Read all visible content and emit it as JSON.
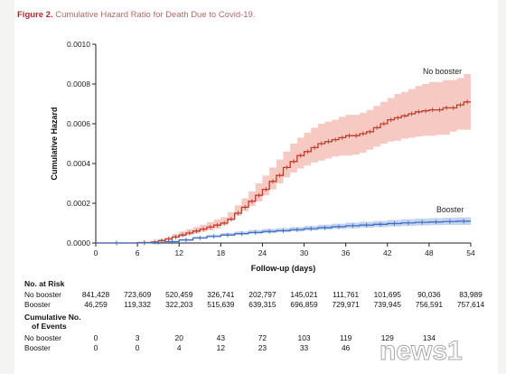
{
  "figure": {
    "label": "Figure 2.",
    "title": "Cumulative Hazard Ratio for Death Due to Covid-19."
  },
  "chart_data": {
    "type": "line",
    "xlabel": "Follow-up (days)",
    "ylabel": "Cumulative Hazard",
    "xlim": [
      0,
      54
    ],
    "ylim": [
      0,
      0.001
    ],
    "x_ticks": [
      0,
      6,
      12,
      18,
      24,
      30,
      36,
      42,
      48,
      54
    ],
    "y_ticks": [
      0.0,
      0.0002,
      0.0004,
      0.0006,
      0.0008,
      0.001
    ],
    "y_tick_labels": [
      "0.0000",
      "0.0002",
      "0.0004",
      "0.0006",
      "0.0008",
      "0.0010"
    ],
    "series": [
      {
        "name": "No booster",
        "color": "#c0392b",
        "band_color": "#f2b3a8",
        "x": [
          0,
          6,
          8,
          9,
          10,
          11,
          12,
          13,
          14,
          15,
          16,
          17,
          18,
          19,
          20,
          21,
          22,
          23,
          24,
          25,
          26,
          27,
          28,
          29,
          30,
          31,
          32,
          33,
          34,
          35,
          36,
          37,
          38,
          39,
          40,
          41,
          42,
          43,
          44,
          45,
          46,
          47,
          48,
          49,
          50,
          51,
          52,
          53,
          54
        ],
        "y": [
          0,
          2e-06,
          5e-06,
          1.2e-05,
          2e-05,
          3e-05,
          4e-05,
          5e-05,
          6e-05,
          7e-05,
          8e-05,
          9e-05,
          0.0001,
          0.00012,
          0.00015,
          0.00018,
          0.00021,
          0.00024,
          0.00027,
          0.00031,
          0.00034,
          0.00038,
          0.00041,
          0.00044,
          0.00046,
          0.00048,
          0.0005,
          0.00051,
          0.00052,
          0.00053,
          0.00054,
          0.00054,
          0.00055,
          0.00056,
          0.00058,
          0.0006,
          0.00062,
          0.00063,
          0.00064,
          0.00065,
          0.00066,
          0.000665,
          0.00067,
          0.00067,
          0.00068,
          0.00068,
          0.000695,
          0.00071,
          0.00071
        ],
        "lower": [
          0,
          0,
          2e-06,
          6e-06,
          1e-05,
          1.8e-05,
          2.5e-05,
          3.3e-05,
          4e-05,
          4.8e-05,
          5.6e-05,
          6.4e-05,
          7.2e-05,
          9e-05,
          0.000112,
          0.000138,
          0.00016,
          0.000185,
          0.00021,
          0.00024,
          0.00027,
          0.0003,
          0.00033,
          0.000355,
          0.000375,
          0.00039,
          0.000405,
          0.000415,
          0.000425,
          0.000435,
          0.00044,
          0.00044,
          0.000445,
          0.000455,
          0.00047,
          0.000485,
          0.0005,
          0.00051,
          0.000515,
          0.000525,
          0.00053,
          0.000535,
          0.00054,
          0.00054,
          0.000545,
          0.000545,
          0.00056,
          0.00057,
          0.00057
        ],
        "upper": [
          0,
          5e-06,
          1e-05,
          2e-05,
          3e-05,
          4.5e-05,
          5.8e-05,
          7e-05,
          8e-05,
          9.2e-05,
          0.000105,
          0.000118,
          0.00013,
          0.000155,
          0.00019,
          0.000225,
          0.00026,
          0.0003,
          0.00034,
          0.00038,
          0.00042,
          0.00046,
          0.0005,
          0.00053,
          0.000555,
          0.00058,
          0.0006,
          0.00061,
          0.00062,
          0.000635,
          0.000645,
          0.000645,
          0.000655,
          0.00067,
          0.00069,
          0.00071,
          0.00073,
          0.00075,
          0.00076,
          0.000775,
          0.00079,
          0.0008,
          0.00081,
          0.00081,
          0.00082,
          0.00082,
          0.00083,
          0.00085,
          0.00085
        ]
      },
      {
        "name": "Booster",
        "color": "#3f6fc2",
        "band_color": "#a9c1ea",
        "x": [
          0,
          6,
          8,
          10,
          12,
          14,
          16,
          18,
          20,
          22,
          24,
          26,
          28,
          30,
          32,
          34,
          36,
          38,
          40,
          42,
          44,
          46,
          48,
          50,
          52,
          54
        ],
        "y": [
          0,
          1e-06,
          3e-06,
          7e-06,
          1.5e-05,
          2.5e-05,
          3.3e-05,
          4e-05,
          4.7e-05,
          5.3e-05,
          5.8e-05,
          6.2e-05,
          6.7e-05,
          7.2e-05,
          7.7e-05,
          8.2e-05,
          8.7e-05,
          9e-05,
          9.4e-05,
          9.8e-05,
          0.000101,
          0.000104,
          0.000106,
          0.000108,
          0.00011,
          0.00011
        ],
        "lower": [
          0,
          0,
          1e-06,
          4e-06,
          1e-05,
          1.8e-05,
          2.5e-05,
          3e-05,
          3.6e-05,
          4.1e-05,
          4.6e-05,
          5e-05,
          5.4e-05,
          5.8e-05,
          6.3e-05,
          6.7e-05,
          7.1e-05,
          7.4e-05,
          7.7e-05,
          8e-05,
          8.3e-05,
          8.6e-05,
          8.8e-05,
          9e-05,
          9.1e-05,
          9.1e-05
        ],
        "upper": [
          0,
          3e-06,
          6e-06,
          1e-05,
          2.1e-05,
          3.3e-05,
          4.2e-05,
          5e-05,
          5.8e-05,
          6.6e-05,
          7.1e-05,
          7.5e-05,
          8e-05,
          8.6e-05,
          9.2e-05,
          9.7e-05,
          0.000103,
          0.000107,
          0.000111,
          0.000116,
          0.00012,
          0.000123,
          0.000125,
          0.000127,
          0.000129,
          0.000129
        ]
      }
    ],
    "annotations": [
      {
        "text": "No booster",
        "series": "No booster"
      },
      {
        "text": "Booster",
        "series": "Booster"
      }
    ],
    "grid": false
  },
  "risk_table": {
    "title": "No. at Risk",
    "columns": [
      "0",
      "6",
      "12",
      "18",
      "24",
      "30",
      "36",
      "42",
      "48",
      "54"
    ],
    "rows": [
      {
        "label": "No booster",
        "values": [
          "841,428",
          "723,609",
          "520,459",
          "326,741",
          "202,797",
          "145,021",
          "111,761",
          "101,695",
          "90,036",
          "83,989"
        ]
      },
      {
        "label": "Booster",
        "values": [
          "46,259",
          "119,332",
          "322,203",
          "515,639",
          "639,315",
          "696,859",
          "729,971",
          "739,945",
          "756,591",
          "757,614"
        ]
      }
    ]
  },
  "events_table": {
    "title_line1": "Cumulative No.",
    "title_line2": "of Events",
    "rows": [
      {
        "label": "No booster",
        "values": [
          "0",
          "3",
          "20",
          "43",
          "72",
          "103",
          "119",
          "129",
          "134",
          ""
        ]
      },
      {
        "label": "Booster",
        "values": [
          "0",
          "0",
          "4",
          "12",
          "23",
          "33",
          "46",
          "",
          "",
          ""
        ]
      }
    ]
  },
  "watermark": {
    "text": "news1"
  }
}
